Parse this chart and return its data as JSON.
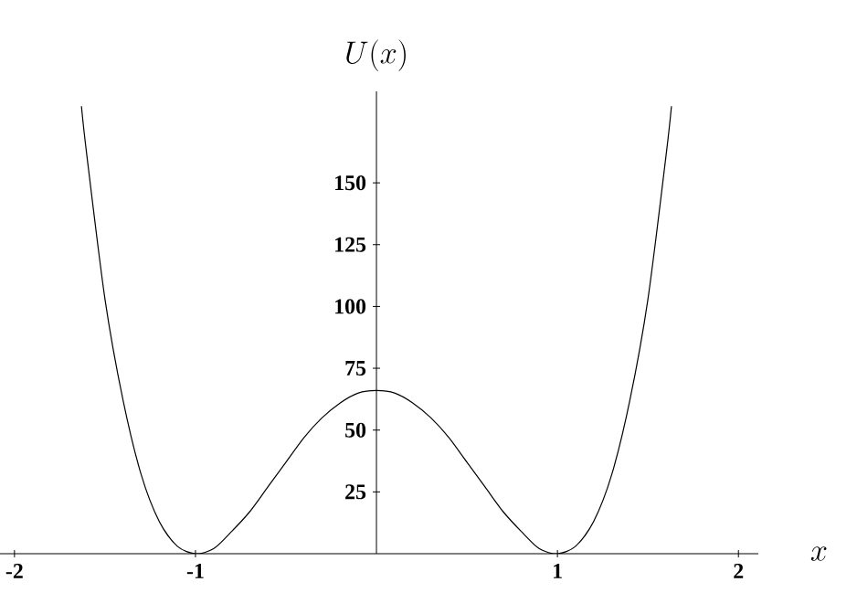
{
  "chart_data": {
    "type": "line",
    "ylabel": "U(x)",
    "xlabel": "x",
    "x": [
      -1.63,
      -1.6,
      -1.5,
      -1.4,
      -1.3,
      -1.2,
      -1.1,
      -1.0,
      -0.9,
      -0.8,
      -0.7,
      -0.6,
      -0.5,
      -0.4,
      -0.3,
      -0.2,
      -0.1,
      0,
      0.1,
      0.2,
      0.3,
      0.4,
      0.5,
      0.6,
      0.7,
      0.8,
      0.9,
      1.0,
      1.1,
      1.2,
      1.3,
      1.4,
      1.5,
      1.6,
      1.63
    ],
    "series": [
      {
        "color": "#000000",
        "values": [
          181,
          161,
          103,
          62,
          32,
          13,
          3,
          0,
          2,
          9,
          17,
          27,
          37,
          47,
          55,
          61,
          65,
          66,
          65,
          61,
          55,
          47,
          37,
          27,
          17,
          9,
          2,
          0,
          3,
          13,
          32,
          62,
          103,
          161,
          181
        ]
      }
    ],
    "xlim": [
      -2.08,
      2.11
    ],
    "ylim": [
      0,
      187
    ],
    "xticks": [
      -2,
      -1,
      1,
      2
    ],
    "yticks": [
      25,
      50,
      75,
      100,
      125,
      150
    ]
  }
}
